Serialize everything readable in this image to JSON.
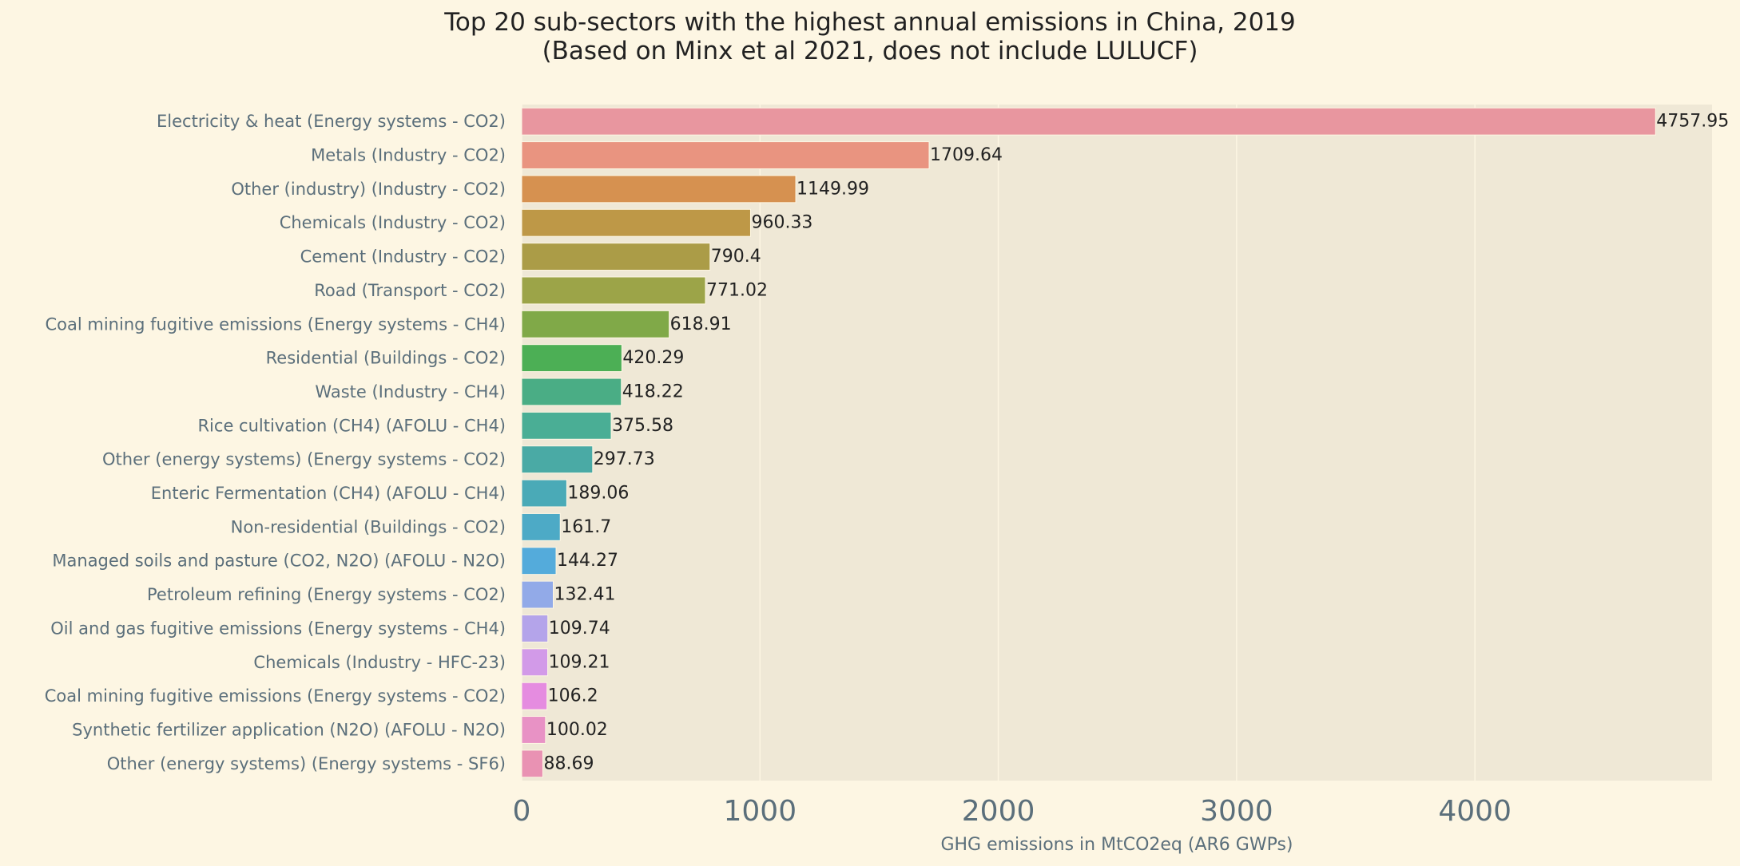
{
  "chart_data": {
    "type": "bar",
    "orientation": "horizontal",
    "title": "Top 20 sub-sectors with the highest annual emissions in China, 2019",
    "subtitle": "(Based on Minx et al 2021, does not include LULUCF)",
    "xlabel": "GHG emissions in MtCO2eq (AR6 GWPs)",
    "ylabel": "",
    "xlim": [
      0,
      4995
    ],
    "xticks": [
      0,
      1000,
      2000,
      3000,
      4000
    ],
    "grid": true,
    "plot_background": "#efe8d6",
    "page_background": "#fdf6e3",
    "categories": [
      "Electricity & heat (Energy systems - CO2)",
      "Metals (Industry - CO2)",
      "Other (industry) (Industry - CO2)",
      "Chemicals (Industry - CO2)",
      "Cement (Industry - CO2)",
      "Road (Transport - CO2)",
      "Coal mining fugitive emissions (Energy systems - CH4)",
      "Residential (Buildings - CO2)",
      "Waste (Industry - CH4)",
      "Rice cultivation (CH4) (AFOLU - CH4)",
      "Other (energy systems) (Energy systems - CO2)",
      "Enteric Fermentation (CH4) (AFOLU - CH4)",
      "Non-residential (Buildings - CO2)",
      "Managed soils and pasture (CO2, N2O) (AFOLU - N2O)",
      "Petroleum refining (Energy systems - CO2)",
      "Oil and gas fugitive emissions (Energy systems - CH4)",
      "Chemicals (Industry - HFC-23)",
      "Coal mining fugitive emissions (Energy systems - CO2)",
      "Synthetic fertilizer application (N2O) (AFOLU - N2O)",
      "Other (energy systems) (Energy systems - SF6)"
    ],
    "values": [
      4757.95,
      1709.64,
      1149.99,
      960.33,
      790.4,
      771.02,
      618.91,
      420.29,
      418.22,
      375.58,
      297.73,
      189.06,
      161.7,
      144.27,
      132.41,
      109.74,
      109.21,
      106.2,
      100.02,
      88.69
    ],
    "value_labels": [
      "4757.95",
      "1709.64",
      "1149.99",
      "960.33",
      "790.4",
      "771.02",
      "618.91",
      "420.29",
      "418.22",
      "375.58",
      "297.73",
      "189.06",
      "161.7",
      "144.27",
      "132.41",
      "109.74",
      "109.21",
      "106.2",
      "100.02",
      "88.69"
    ],
    "colors": [
      "#e8969f",
      "#e99480",
      "#d69150",
      "#be9847",
      "#ab9c47",
      "#9ca448",
      "#80a948",
      "#4caf55",
      "#4aad85",
      "#4aae95",
      "#4aaaa5",
      "#4aaab7",
      "#4daac6",
      "#54abdb",
      "#92aae8",
      "#b4a4ea",
      "#d29ae8",
      "#e58ce0",
      "#e892c5",
      "#e992b3"
    ]
  }
}
